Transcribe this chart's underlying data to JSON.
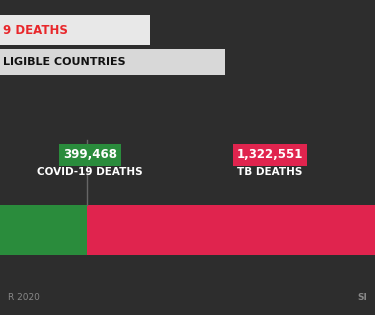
{
  "bg_color": "#2d2d2d",
  "title_line1": "9 DEATHS",
  "title_line1_color": "#e8272b",
  "title_line2": "LIGIBLE COUNTRIES",
  "title_line2_bg": "#d8d8d8",
  "title_line2_color": "#111111",
  "covid_value": 399468,
  "tb_value": 1322551,
  "covid_label": "COVID-19 DEATHS",
  "tb_label": "TB DEATHS",
  "covid_value_str": "399,468",
  "tb_value_str": "1,322,551",
  "covid_color": "#2a8c3c",
  "tb_color": "#e0244e",
  "footer_left": "R 2020",
  "footer_right": "SI",
  "footer_color": "#888888",
  "divider_color": "#666666",
  "title_line1_bg": "#e8e8e8",
  "label_color": "#ffffff"
}
